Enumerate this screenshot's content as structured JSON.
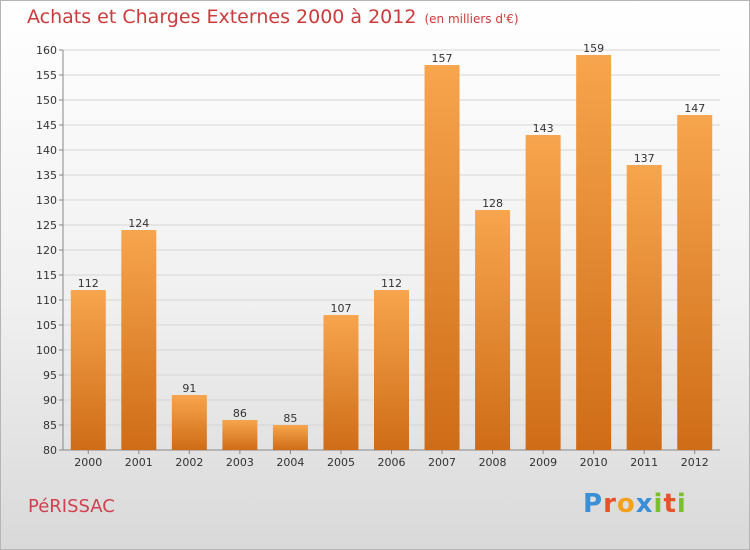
{
  "title": "Achats et Charges Externes 2000 à 2012",
  "unit": "(en milliers d'€)",
  "city": "PéRISSAC",
  "brand": {
    "text": "Proxiti",
    "letters": [
      {
        "ch": "P",
        "color": "#3a8fd6"
      },
      {
        "ch": "r",
        "color": "#e8522a"
      },
      {
        "ch": "o",
        "color": "#f3a11a"
      },
      {
        "ch": "x",
        "color": "#3a8fd6"
      },
      {
        "ch": "i",
        "color": "#7cbf2c"
      },
      {
        "ch": "t",
        "color": "#e8522a"
      },
      {
        "ch": "i",
        "color": "#7cbf2c"
      }
    ]
  },
  "colors": {
    "bar_top": "#f7a54e",
    "bar_bottom": "#cf6c17",
    "title": "#cc3b3b",
    "city": "#d0404f",
    "grid": "#d6d6d6"
  },
  "chart_data": {
    "type": "bar",
    "title": "Achats et Charges Externes 2000 à 2012",
    "subtitle": "(en milliers d'€)",
    "categories": [
      "2000",
      "2001",
      "2002",
      "2003",
      "2004",
      "2005",
      "2006",
      "2007",
      "2008",
      "2009",
      "2010",
      "2011",
      "2012"
    ],
    "values": [
      112,
      124,
      91,
      86,
      85,
      107,
      112,
      157,
      128,
      143,
      159,
      137,
      147
    ],
    "ylim": [
      80,
      160
    ],
    "yticks": [
      80,
      85,
      90,
      95,
      100,
      105,
      110,
      115,
      120,
      125,
      130,
      135,
      140,
      145,
      150,
      155,
      160
    ],
    "grid": true,
    "xlabel": "",
    "ylabel": ""
  }
}
